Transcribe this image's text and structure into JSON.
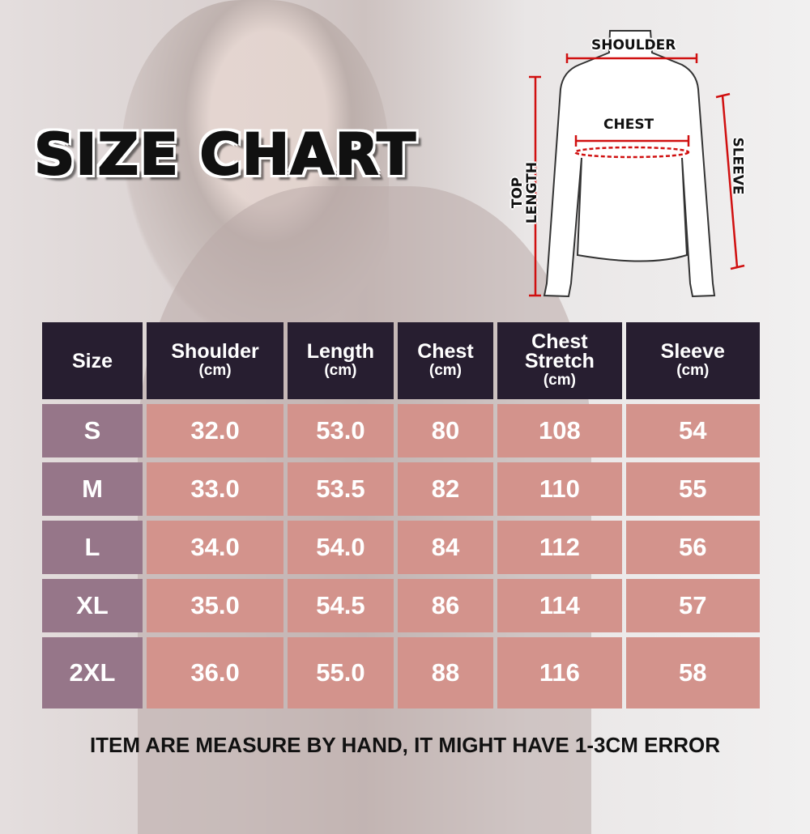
{
  "title": "SIZE CHART",
  "diagram": {
    "shoulder": "SHOULDER",
    "chest": "CHEST",
    "top_length": "TOP LENGTH",
    "sleeve": "SLEEVE"
  },
  "table": {
    "headers": [
      {
        "label": "Size",
        "unit": ""
      },
      {
        "label": "Shoulder",
        "unit": "(cm)"
      },
      {
        "label": "Length",
        "unit": "(cm)"
      },
      {
        "label": "Chest",
        "unit": "(cm)"
      },
      {
        "label": "Chest Stretch",
        "unit": "(cm)"
      },
      {
        "label": "Sleeve",
        "unit": "(cm)"
      }
    ],
    "rows": [
      [
        "S",
        "32.0",
        "53.0",
        "80",
        "108",
        "54"
      ],
      [
        "M",
        "33.0",
        "53.5",
        "82",
        "110",
        "55"
      ],
      [
        "L",
        "34.0",
        "54.0",
        "84",
        "112",
        "56"
      ],
      [
        "XL",
        "35.0",
        "54.5",
        "86",
        "114",
        "57"
      ],
      [
        "2XL",
        "36.0",
        "55.0",
        "88",
        "116",
        "58"
      ]
    ]
  },
  "note": "ITEM ARE MEASURE BY HAND, IT MIGHT HAVE 1-3CM ERROR",
  "colors": {
    "header": "#271e30",
    "size_cell": "#967689",
    "value_cell": "#d3938c",
    "measure_line": "#d01010"
  }
}
